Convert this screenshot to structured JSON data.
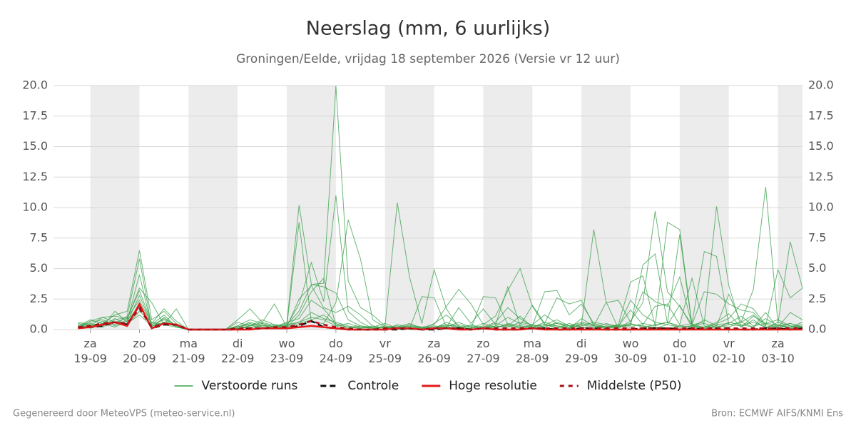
{
  "chart_data": {
    "type": "line",
    "title": "Neerslag (mm, 6 uurlijks)",
    "subtitle": "Groningen/Eelde, vrijdag 18 september 2026 (Versie vr 12 uur)",
    "footer_left": "Gegenereerd door MeteoVPS (meteo-service.nl)",
    "footer_right": "Bron: ECMWF AIFS/KNMI Ens",
    "xlim": [
      -0.75,
      14.5
    ],
    "ylim": [
      0,
      20
    ],
    "grid": true,
    "yticks": [
      {
        "value": 0,
        "label": "0.0"
      },
      {
        "value": 2.5,
        "label": "2.5"
      },
      {
        "value": 5,
        "label": "5.0"
      },
      {
        "value": 7.5,
        "label": "7.5"
      },
      {
        "value": 10,
        "label": "10.0"
      },
      {
        "value": 12.5,
        "label": "12.5"
      },
      {
        "value": 15,
        "label": "15.0"
      },
      {
        "value": 17.5,
        "label": "17.5"
      },
      {
        "value": 20,
        "label": "20.0"
      }
    ],
    "xticks": [
      {
        "value": 0,
        "label": "za\n19-09"
      },
      {
        "value": 1,
        "label": "zo\n20-09"
      },
      {
        "value": 2,
        "label": "ma\n21-09"
      },
      {
        "value": 3,
        "label": "di\n22-09"
      },
      {
        "value": 4,
        "label": "wo\n23-09"
      },
      {
        "value": 5,
        "label": "do\n24-09"
      },
      {
        "value": 6,
        "label": "vr\n25-09"
      },
      {
        "value": 7,
        "label": "za\n26-09"
      },
      {
        "value": 8,
        "label": "zo\n27-09"
      },
      {
        "value": 9,
        "label": "ma\n28-09"
      },
      {
        "value": 10,
        "label": "di\n29-09"
      },
      {
        "value": 11,
        "label": "wo\n30-09"
      },
      {
        "value": 12,
        "label": "do\n01-10"
      },
      {
        "value": 13,
        "label": "vr\n02-10"
      },
      {
        "value": 14,
        "label": "za\n03-10"
      }
    ],
    "x": [
      -0.25,
      0,
      0.25,
      0.5,
      0.75,
      1,
      1.25,
      1.5,
      1.75,
      2,
      2.25,
      2.5,
      2.75,
      3,
      3.25,
      3.5,
      3.75,
      4,
      4.25,
      4.5,
      4.75,
      5,
      5.25,
      5.5,
      5.75,
      6,
      6.25,
      6.5,
      6.75,
      7,
      7.25,
      7.5,
      7.75,
      8,
      8.25,
      8.5,
      8.75,
      9,
      9.25,
      9.5,
      9.75,
      10,
      10.25,
      10.5,
      10.75,
      11,
      11.25,
      11.5,
      11.75,
      12,
      12.25,
      12.5,
      12.75,
      13,
      13.25,
      13.5,
      13.75,
      14,
      14.25,
      14.5
    ],
    "ensemble": {
      "name": "Verstoorde runs",
      "color": "#3a9f4a",
      "members": [
        [
          0.3,
          0.8,
          0.5,
          1.2,
          1.5,
          6.5,
          0.8,
          1.5,
          0.5,
          0,
          0,
          0,
          0,
          0.3,
          0.8,
          0.5,
          0.2,
          0.4,
          1.5,
          3.7,
          3.8,
          20,
          4,
          1.8,
          1.2,
          0.3,
          0.1,
          0,
          0,
          0.5,
          1.2,
          0.3,
          0,
          0.2,
          0.6,
          1.8,
          0.9,
          0.3,
          3.1,
          3.2,
          1.2,
          2.1,
          0.5,
          0.2,
          0.4,
          3.9,
          4.4,
          0.3,
          0.6,
          0.2,
          0.3,
          0.1,
          0.5,
          0.9,
          2.1,
          1.7,
          0.4,
          0.2,
          1.4,
          0.8
        ],
        [
          0.5,
          0.3,
          1,
          0.6,
          0.9,
          3.2,
          0.5,
          1.7,
          0.7,
          0,
          0,
          0,
          0,
          0.1,
          0.3,
          0.6,
          0.3,
          0.5,
          10.2,
          3.7,
          3.5,
          3,
          0.8,
          0.3,
          0.2,
          0,
          0.4,
          0.2,
          0,
          0.1,
          0.2,
          0.6,
          0.2,
          0,
          0.3,
          1,
          0.5,
          0.2,
          0.6,
          0.3,
          0.1,
          0.9,
          0.3,
          0.1,
          0.2,
          2.4,
          1.2,
          0.6,
          0.4,
          2,
          0.2,
          0.1,
          0.3,
          2.9,
          0.6,
          0.2,
          1.4,
          0.1,
          0.5,
          0.2
        ],
        [
          0.2,
          0.6,
          0.8,
          0.4,
          1.1,
          5.8,
          0.2,
          0.9,
          0.3,
          0,
          0,
          0,
          0,
          0.2,
          0.5,
          0.2,
          0.1,
          0.3,
          2.1,
          5.5,
          2.3,
          11,
          1.5,
          0.6,
          0.1,
          0.2,
          0,
          0.1,
          0.2,
          0.1,
          0.4,
          0.1,
          0.1,
          0.5,
          0.2,
          0.3,
          1.1,
          0.2,
          0.4,
          0.2,
          0.1,
          0.4,
          0.2,
          0.1,
          0.3,
          1.6,
          0.4,
          1.9,
          2.1,
          0.4,
          4.2,
          0.3,
          0.1,
          0.6,
          0.4,
          0.2,
          0.9,
          0.3,
          0.2,
          0.4
        ],
        [
          0.1,
          0.4,
          0.2,
          1.5,
          0.6,
          2.8,
          0.4,
          1.2,
          0.2,
          0,
          0,
          0,
          0,
          0.6,
          0.3,
          0.8,
          0.4,
          0.2,
          1.2,
          3.1,
          4.2,
          0.3,
          0.5,
          0.2,
          0.1,
          0.3,
          10.4,
          4.3,
          0.5,
          4.9,
          1.7,
          0.2,
          0.1,
          2.7,
          2.6,
          0.4,
          0.2,
          0.3,
          0.4,
          0.1,
          0.5,
          0.2,
          0.1,
          0.3,
          0.2,
          0.4,
          0.3,
          0.2,
          0.1,
          0.3,
          0.2,
          0.8,
          0.3,
          0.2,
          0.6,
          1.2,
          0.2,
          0.4,
          0.1,
          0.3
        ],
        [
          0.4,
          0.2,
          0.7,
          0.3,
          0.8,
          1.9,
          0.3,
          0.6,
          0.4,
          0,
          0,
          0,
          0,
          0.1,
          0.2,
          0.3,
          0.2,
          0.6,
          0.9,
          2.4,
          1.7,
          0.5,
          0.2,
          0.1,
          0.3,
          0.1,
          0.2,
          0.5,
          0.1,
          0.3,
          0.2,
          0.1,
          0.4,
          0.1,
          0.3,
          0.2,
          0.6,
          0.4,
          1.2,
          0.5,
          0.3,
          0.4,
          8.2,
          2.3,
          0.1,
          0.7,
          2.2,
          9.7,
          3.1,
          1.9,
          0.4,
          0.2,
          0.6,
          1.3,
          0.2,
          0.8,
          0.1,
          0.6,
          0.3,
          0.2
        ],
        [
          0.2,
          0.5,
          0.3,
          0.9,
          0.4,
          1.5,
          0.6,
          0.4,
          0.2,
          0,
          0,
          0,
          0,
          0.3,
          0.1,
          0.4,
          0.1,
          0.3,
          0.6,
          1.4,
          0.9,
          0.6,
          0.3,
          0.1,
          0.2,
          0.5,
          0.1,
          0.3,
          0.1,
          0.2,
          0.4,
          0.2,
          0.1,
          0.3,
          0.2,
          0.4,
          0.2,
          0.1,
          0.3,
          0.5,
          0.2,
          0.3,
          0.6,
          0.4,
          0.3,
          0.2,
          0.5,
          0.3,
          8.8,
          8.2,
          0.4,
          0.6,
          10.1,
          3.6,
          0.2,
          1.1,
          0.5,
          0.8,
          0.3,
          0.1
        ],
        [
          0.3,
          0.1,
          0.4,
          0.6,
          0.5,
          1.2,
          0.3,
          0.5,
          0.3,
          0,
          0,
          0,
          0,
          0.2,
          0.4,
          0.1,
          0.3,
          0.2,
          0.5,
          0.8,
          1.2,
          0.4,
          0.2,
          0.3,
          0.1,
          0.2,
          0.1,
          0.4,
          0.2,
          0.1,
          0.3,
          0.4,
          0.2,
          0.1,
          0.5,
          0.3,
          0.1,
          0.4,
          0.2,
          0.6,
          0.3,
          0.2,
          0.1,
          0.5,
          0.2,
          0.4,
          0.3,
          0.1,
          0.4,
          0.2,
          0.3,
          0.5,
          0.2,
          0.4,
          0.6,
          3.3,
          11.7,
          0.5,
          7.2,
          3.4
        ],
        [
          0.6,
          0.4,
          0.2,
          0.8,
          1,
          2.4,
          0.4,
          0.8,
          0.2,
          0,
          0,
          0,
          0,
          0.1,
          0.3,
          0.5,
          0.2,
          0.4,
          0.6,
          1,
          0.8,
          0.3,
          0.1,
          0.2,
          0.1,
          0.2,
          0.3,
          0.1,
          0.2,
          0.4,
          1.9,
          3.3,
          2.1,
          0.4,
          1.1,
          3.2,
          5,
          1.9,
          0.4,
          0.8,
          0.3,
          0.6,
          0.4,
          0.2,
          0.3,
          0.5,
          0.2,
          0.4,
          0.6,
          0.3,
          0.5,
          6.4,
          6,
          0.4,
          0.3,
          0.6,
          0.2,
          0.3,
          0.5,
          0.2
        ],
        [
          0.1,
          0.3,
          0.5,
          0.2,
          0.7,
          4.5,
          0.2,
          1,
          0.3,
          0,
          0,
          0,
          0,
          0.2,
          0.6,
          0.3,
          0.4,
          0.3,
          8.8,
          0.6,
          0.5,
          2.2,
          9,
          5.8,
          0.8,
          0.2,
          0.1,
          0.3,
          0.2,
          0.1,
          0.6,
          0.2,
          0.3,
          0.2,
          0.1,
          0.5,
          0.3,
          0.2,
          0.4,
          0.3,
          0.2,
          0.5,
          0.3,
          0.2,
          0.4,
          0.3,
          5.3,
          6.2,
          0.5,
          7.8,
          0.3,
          0.2,
          0.4,
          0.5,
          1.1,
          0.3,
          0.5,
          0.4,
          0.2,
          0.6
        ],
        [
          0.2,
          0.7,
          1,
          1.1,
          0.9,
          3.4,
          2.2,
          0.4,
          1.7,
          0,
          0,
          0,
          0,
          0.8,
          1.7,
          0.6,
          2.1,
          0.2,
          2.5,
          3.6,
          1.8,
          1.4,
          1.9,
          1.2,
          0.3,
          0.1,
          0.2,
          0.1,
          2.7,
          2.6,
          0.2,
          1.8,
          0.5,
          1.7,
          0.4,
          3.5,
          0.3,
          2,
          0.5,
          2.6,
          2.1,
          2.4,
          0.3,
          2.2,
          2.4,
          0.6,
          3.1,
          2.3,
          1.9,
          4.3,
          0.4,
          3.1,
          2.9,
          2.1,
          1.6,
          1.4,
          0.3,
          4.9,
          2.6,
          3.4
        ]
      ]
    },
    "series": [
      {
        "name": "Controle",
        "color": "#111111",
        "dash": "8,5",
        "values": [
          0.2,
          0.2,
          0.3,
          0.6,
          0.4,
          2,
          0.1,
          0.4,
          0.4,
          0,
          0,
          0,
          0,
          0,
          0.1,
          0.1,
          0.1,
          0.1,
          0.3,
          0.7,
          0.2,
          0.1,
          0,
          0,
          0,
          0,
          0,
          0.1,
          0,
          0,
          0.1,
          0.1,
          0,
          0.1,
          0,
          0,
          0,
          0.1,
          0.1,
          0,
          0,
          0.1,
          0.1,
          0,
          0,
          0,
          0.1,
          0.1,
          0.1,
          0,
          0.1,
          0,
          0.1,
          0.1,
          0,
          0,
          0.1,
          0.1,
          0,
          0.1
        ]
      },
      {
        "name": "Hoge resolutie",
        "color": "#e31a1c",
        "dash": "",
        "values": [
          0.1,
          0.2,
          0.4,
          0.6,
          0.3,
          2.1,
          0.1,
          0.5,
          0.4,
          0,
          0,
          0,
          0,
          0,
          0,
          0.1,
          0.1,
          0.1,
          0.2,
          0.3,
          0.2,
          0.1,
          0,
          0,
          0,
          0,
          0.1,
          0.1,
          0,
          0.1,
          0.1,
          0,
          0,
          0.1,
          0,
          0,
          0,
          0.1,
          0,
          0,
          0,
          0,
          0,
          0,
          0,
          0,
          0,
          0,
          0,
          0,
          0,
          0,
          0,
          0,
          0,
          0,
          0,
          0,
          0,
          0
        ]
      },
      {
        "name": "Middelste (P50)",
        "color": "#a50f15",
        "dash": "6,6",
        "values": [
          0.2,
          0.3,
          0.5,
          0.6,
          0.5,
          1.7,
          0.2,
          0.5,
          0.4,
          0,
          0,
          0,
          0,
          0.1,
          0.1,
          0.1,
          0.2,
          0.2,
          0.4,
          0.7,
          0.4,
          0.2,
          0.1,
          0,
          0,
          0.1,
          0.1,
          0.1,
          0,
          0.1,
          0.1,
          0.1,
          0,
          0.1,
          0.1,
          0.1,
          0.1,
          0.1,
          0.1,
          0.1,
          0.1,
          0.1,
          0.1,
          0.1,
          0.1,
          0.1,
          0.1,
          0.1,
          0.1,
          0.1,
          0.1,
          0.1,
          0.1,
          0.1,
          0.1,
          0.1,
          0.1,
          0.1,
          0.1,
          0.1
        ]
      }
    ]
  }
}
